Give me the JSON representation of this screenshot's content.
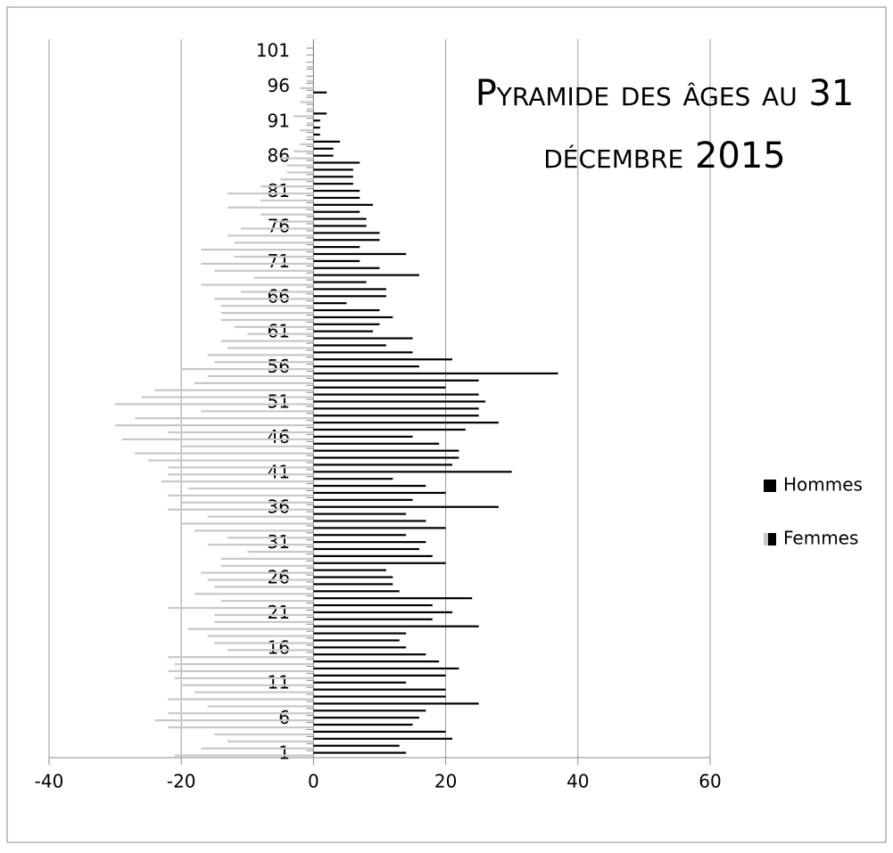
{
  "chart_data": {
    "type": "bar",
    "orientation": "horizontal",
    "title": "Pyramide des âges au 31 décembre 2015",
    "categories": [
      "1",
      null,
      null,
      null,
      null,
      "6",
      null,
      null,
      null,
      null,
      "11",
      null,
      null,
      null,
      null,
      "16",
      null,
      null,
      null,
      null,
      "21",
      null,
      null,
      null,
      null,
      "26",
      null,
      null,
      null,
      null,
      "31",
      null,
      null,
      null,
      null,
      "36",
      null,
      null,
      null,
      null,
      "41",
      null,
      null,
      null,
      null,
      "46",
      null,
      null,
      null,
      null,
      "51",
      null,
      null,
      null,
      null,
      "56",
      null,
      null,
      null,
      null,
      "61",
      null,
      null,
      null,
      null,
      "66",
      null,
      null,
      null,
      null,
      "71",
      null,
      null,
      null,
      null,
      "76",
      null,
      null,
      null,
      null,
      "81",
      null,
      null,
      null,
      null,
      "86",
      null,
      null,
      null,
      null,
      "91",
      null,
      null,
      null,
      null,
      "96",
      null,
      null,
      null,
      null,
      "101"
    ],
    "series": [
      {
        "name": "Hommes",
        "color": "#000000",
        "values": [
          14,
          13,
          21,
          20,
          15,
          16,
          17,
          25,
          20,
          20,
          14,
          20,
          22,
          19,
          17,
          14,
          13,
          14,
          25,
          18,
          21,
          18,
          24,
          13,
          12,
          12,
          11,
          20,
          18,
          16,
          17,
          14,
          20,
          17,
          14,
          28,
          15,
          20,
          17,
          12,
          30,
          21,
          22,
          22,
          19,
          15,
          23,
          28,
          25,
          25,
          26,
          25,
          20,
          25,
          37,
          16,
          21,
          15,
          11,
          15,
          9,
          10,
          12,
          10,
          5,
          11,
          11,
          8,
          16,
          10,
          7,
          14,
          7,
          10,
          10,
          8,
          8,
          7,
          9,
          7,
          7,
          6,
          6,
          6,
          7,
          3,
          3,
          4,
          1,
          1,
          1,
          2,
          0,
          0,
          2,
          0,
          0,
          0,
          0,
          0,
          0
        ]
      },
      {
        "name": "Femmes",
        "color": "#c8c8c8",
        "values": [
          -21,
          -17,
          -13,
          -15,
          -22,
          -24,
          -22,
          -16,
          -22,
          -18,
          -20,
          -21,
          -22,
          -21,
          -22,
          -13,
          -15,
          -16,
          -19,
          -15,
          -15,
          -22,
          -14,
          -18,
          -15,
          -16,
          -17,
          -14,
          -14,
          -10,
          -16,
          -13,
          -18,
          -20,
          -16,
          -22,
          -20,
          -22,
          -19,
          -23,
          -22,
          -22,
          -25,
          -27,
          -20,
          -29,
          -22,
          -30,
          -27,
          -17,
          -30,
          -26,
          -24,
          -18,
          -16,
          -20,
          -15,
          -16,
          -13,
          -14,
          -10,
          -12,
          -14,
          -14,
          -14,
          -15,
          -11,
          -17,
          -9,
          -15,
          -17,
          -12,
          -17,
          -12,
          -13,
          -11,
          -6,
          -8,
          -13,
          -8,
          -13,
          -8,
          -5,
          -4,
          -4,
          -5,
          -3,
          -2,
          -1,
          -2,
          -1,
          -3,
          -1,
          -2,
          -1,
          -2,
          -1,
          0,
          -1,
          0,
          0
        ]
      }
    ],
    "xlim": [
      -40,
      60
    ],
    "xticks": [
      -40,
      -20,
      0,
      20,
      40,
      60
    ],
    "grid": true,
    "legend": "right"
  }
}
